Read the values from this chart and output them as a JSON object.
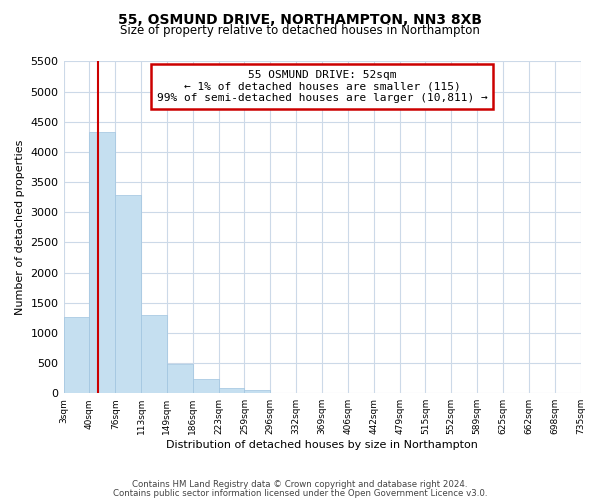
{
  "title": "55, OSMUND DRIVE, NORTHAMPTON, NN3 8XB",
  "subtitle": "Size of property relative to detached houses in Northampton",
  "xlabel": "Distribution of detached houses by size in Northampton",
  "ylabel": "Number of detached properties",
  "bar_values": [
    1270,
    4330,
    3290,
    1290,
    480,
    230,
    80,
    50,
    0,
    0,
    0,
    0,
    0,
    0,
    0,
    0,
    0,
    0,
    0,
    0
  ],
  "bin_labels": [
    "3sqm",
    "40sqm",
    "76sqm",
    "113sqm",
    "149sqm",
    "186sqm",
    "223sqm",
    "259sqm",
    "296sqm",
    "332sqm",
    "369sqm",
    "406sqm",
    "442sqm",
    "479sqm",
    "515sqm",
    "552sqm",
    "589sqm",
    "625sqm",
    "662sqm",
    "698sqm",
    "735sqm"
  ],
  "bar_color": "#c5dff0",
  "bar_edge_color": "#a0c4e0",
  "marker_color": "#cc0000",
  "ylim": [
    0,
    5500
  ],
  "yticks": [
    0,
    500,
    1000,
    1500,
    2000,
    2500,
    3000,
    3500,
    4000,
    4500,
    5000,
    5500
  ],
  "annotation_title": "55 OSMUND DRIVE: 52sqm",
  "annotation_line1": "← 1% of detached houses are smaller (115)",
  "annotation_line2": "99% of semi-detached houses are larger (10,811) →",
  "annotation_box_color": "#ffffff",
  "annotation_box_edge": "#cc0000",
  "footer1": "Contains HM Land Registry data © Crown copyright and database right 2024.",
  "footer2": "Contains public sector information licensed under the Open Government Licence v3.0.",
  "bg_color": "#ffffff",
  "grid_color": "#ccd9e8"
}
